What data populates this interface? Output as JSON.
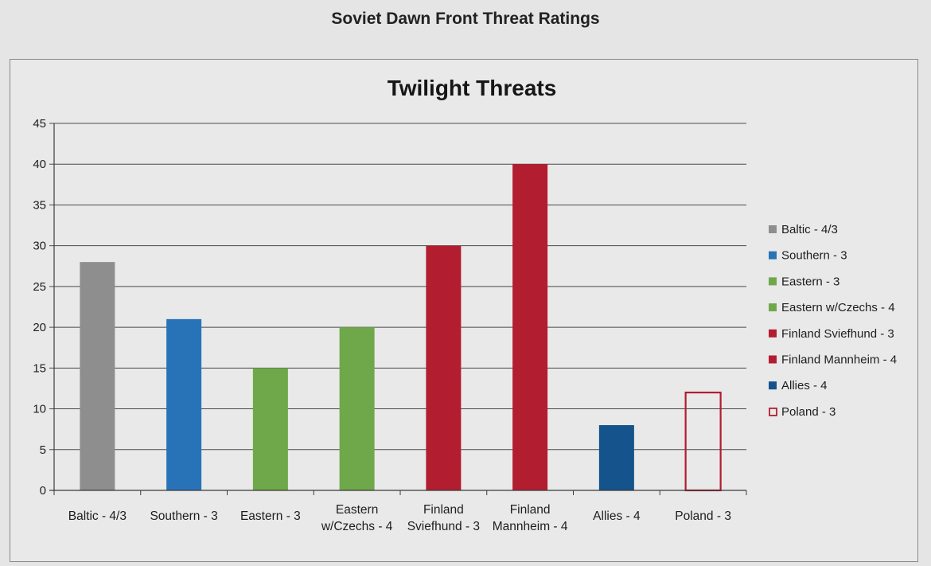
{
  "page_title": "Soviet Dawn Front Threat Ratings",
  "chart_data": {
    "type": "bar",
    "title": "Twilight Threats",
    "xlabel": "",
    "ylabel": "",
    "ylim": [
      0,
      45
    ],
    "y_ticks": [
      0,
      5,
      10,
      15,
      20,
      25,
      30,
      35,
      40,
      45
    ],
    "grid": true,
    "legend_position": "right",
    "categories": [
      "Baltic - 4/3",
      "Southern - 3",
      "Eastern - 3",
      "Eastern w/Czechs - 4",
      "Finland Sviefhund - 3",
      "Finland Mannheim - 4",
      "Allies - 4",
      "Poland - 3"
    ],
    "category_label_lines": [
      [
        "Baltic - 4/3"
      ],
      [
        "Southern - 3"
      ],
      [
        "Eastern - 3"
      ],
      [
        "Eastern",
        "w/Czechs - 4"
      ],
      [
        "Finland",
        "Sviefhund - 3"
      ],
      [
        "Finland",
        "Mannheim - 4"
      ],
      [
        "Allies - 4"
      ],
      [
        "Poland - 3"
      ]
    ],
    "values": [
      28,
      21,
      15,
      20,
      30,
      40,
      8,
      12
    ],
    "colors": [
      "#8e8e8e",
      "#2873b8",
      "#6fa84a",
      "#6fa84a",
      "#b31d30",
      "#b31d30",
      "#14538b",
      "none"
    ],
    "outline_colors": [
      "none",
      "none",
      "none",
      "none",
      "none",
      "none",
      "none",
      "#b31d30"
    ],
    "legend": [
      {
        "label": "Baltic - 4/3",
        "color": "#8e8e8e",
        "outlined": false
      },
      {
        "label": "Southern - 3",
        "color": "#2873b8",
        "outlined": false
      },
      {
        "label": "Eastern - 3",
        "color": "#6fa84a",
        "outlined": false
      },
      {
        "label": "Eastern w/Czechs - 4",
        "color": "#6fa84a",
        "outlined": false
      },
      {
        "label": "Finland Sviefhund - 3",
        "color": "#b31d30",
        "outlined": false
      },
      {
        "label": "Finland Mannheim - 4",
        "color": "#b31d30",
        "outlined": false
      },
      {
        "label": "Allies - 4",
        "color": "#14538b",
        "outlined": false
      },
      {
        "label": "Poland - 3",
        "color": "#b31d30",
        "outlined": true
      }
    ]
  }
}
